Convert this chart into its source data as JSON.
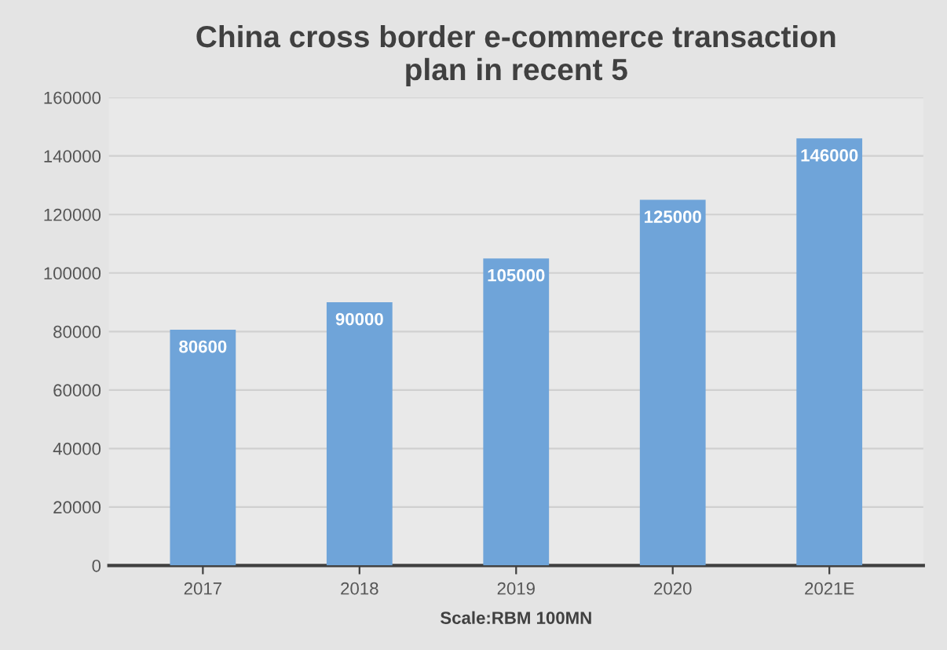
{
  "chart_data": {
    "type": "bar",
    "title": "China cross border e-commerce transaction\nplan in recent 5",
    "xlabel": "Scale:RBM 100MN",
    "categories": [
      "2017",
      "2018",
      "2019",
      "2020",
      "2021E"
    ],
    "values": [
      80600,
      90000,
      105000,
      125000,
      146000
    ],
    "color": "#6fa4d9",
    "ylim": [
      0,
      160000
    ],
    "yticks": [
      0,
      20000,
      40000,
      60000,
      80000,
      100000,
      120000,
      140000,
      160000
    ],
    "grid": "y",
    "data_labels": true
  }
}
